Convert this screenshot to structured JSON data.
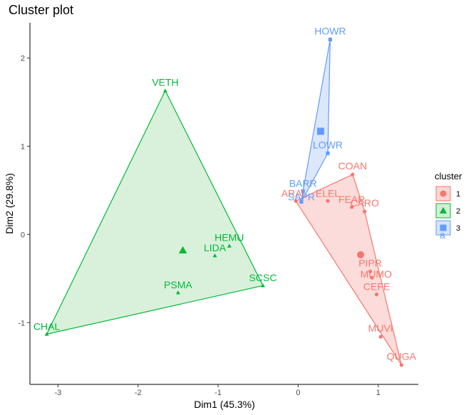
{
  "chart_data": {
    "type": "scatter",
    "title": "Cluster plot",
    "xlabel": "Dim1 (45.3%)",
    "ylabel": "Dim2 (29.8%)",
    "xlim": [
      -3.35,
      1.5
    ],
    "ylim": [
      -1.7,
      2.4
    ],
    "xticks": [
      -3,
      -2,
      -1,
      0,
      1
    ],
    "yticks": [
      -1,
      0,
      1,
      2
    ],
    "tick_labels_x": [
      "-3",
      "-2",
      "-1",
      "0",
      "1"
    ],
    "tick_labels_y": [
      "-1",
      "0",
      "1",
      "2"
    ],
    "grid": false,
    "legend": {
      "title": "cluster",
      "position": "right",
      "labels": [
        "1",
        "2",
        "3"
      ],
      "overlay_text": "a"
    },
    "colors": {
      "1": "#F8766D",
      "2": "#00BA38",
      "3": "#619CFF"
    },
    "fills": {
      "1": "#FBD6D4",
      "2": "#D2EFD5",
      "3": "#D6E3FB"
    },
    "series": [
      {
        "name": "1",
        "shape": "circle",
        "points": [
          {
            "label": "ARAL",
            "x": -0.03,
            "y": 0.38
          },
          {
            "label": "ELEL",
            "x": 0.37,
            "y": 0.38
          },
          {
            "label": "COAN",
            "x": 0.68,
            "y": 0.68
          },
          {
            "label": "FEAR",
            "x": 0.67,
            "y": 0.31
          },
          {
            "label": "CARO",
            "x": 0.83,
            "y": 0.26
          },
          {
            "label": "PIPR",
            "x": 0.9,
            "y": -0.42
          },
          {
            "label": "MUMO",
            "x": 0.92,
            "y": -0.49
          },
          {
            "label": "CEFE",
            "x": 0.98,
            "y": -0.68
          },
          {
            "label": "MUVI",
            "x": 1.03,
            "y": -1.16
          },
          {
            "label": "QUGA",
            "x": 1.29,
            "y": -1.48
          }
        ],
        "hull": [
          "ARAL",
          "COAN",
          "CARO",
          "QUGA"
        ],
        "centroid": {
          "x": 0.78,
          "y": -0.23
        }
      },
      {
        "name": "2",
        "shape": "triangle",
        "points": [
          {
            "label": "VETH",
            "x": -1.66,
            "y": 1.63
          },
          {
            "label": "HEMU",
            "x": -0.86,
            "y": -0.13
          },
          {
            "label": "LIDA",
            "x": -1.04,
            "y": -0.24
          },
          {
            "label": "SCSC",
            "x": -0.44,
            "y": -0.58
          },
          {
            "label": "PSMA",
            "x": -1.5,
            "y": -0.66
          },
          {
            "label": "CHAL",
            "x": -3.14,
            "y": -1.13
          }
        ],
        "hull": [
          "VETH",
          "SCSC",
          "CHAL"
        ],
        "centroid": {
          "x": -1.44,
          "y": -0.18
        }
      },
      {
        "name": "3",
        "shape": "square",
        "points": [
          {
            "label": "HOWR",
            "x": 0.4,
            "y": 2.21
          },
          {
            "label": "LOWR",
            "x": 0.37,
            "y": 0.92
          },
          {
            "label": "BARR",
            "x": 0.06,
            "y": 0.49
          },
          {
            "label": "SAPR",
            "x": 0.04,
            "y": 0.37
          }
        ],
        "hull": [
          "HOWR",
          "LOWR",
          "SAPR",
          "BARR"
        ],
        "centroid": {
          "x": 0.28,
          "y": 1.17
        }
      }
    ]
  }
}
